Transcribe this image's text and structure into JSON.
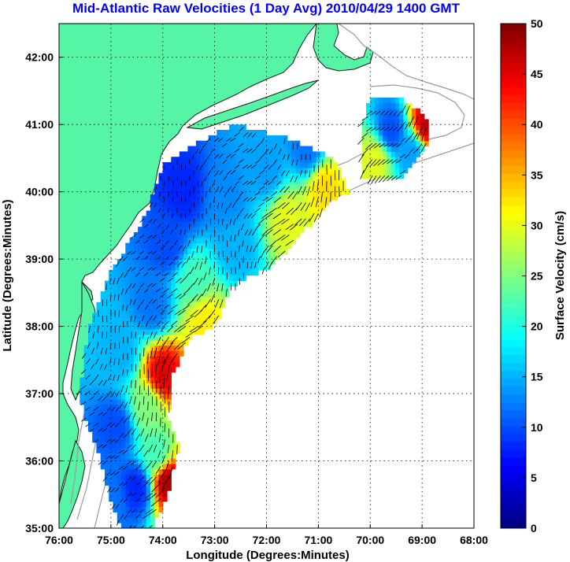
{
  "title": "Mid-Atlantic Raw Velocities (1 Day Avg) 2010/04/29 1400 GMT",
  "xlabel": "Longitude (Degrees:Minutes)",
  "ylabel": "Latitude (Degrees:Minutes)",
  "colorbar": {
    "label": "Surface Velocity (cm/s)",
    "min": 0,
    "max": 50,
    "ticks": [
      "0",
      "5",
      "10",
      "15",
      "20",
      "25",
      "30",
      "35",
      "40",
      "45",
      "50"
    ],
    "colormap": "jet"
  },
  "map": {
    "lon_range": [
      -76,
      -68
    ],
    "lat_range": [
      35,
      42.5
    ],
    "x_ticks": [
      "76:00",
      "75:00",
      "74:00",
      "73:00",
      "72:00",
      "71:00",
      "70:00",
      "69:00",
      "68:00"
    ],
    "y_ticks": [
      "35:00",
      "36:00",
      "37:00",
      "38:00",
      "39:00",
      "40:00",
      "41:00",
      "42:00"
    ],
    "grid": "dotted",
    "land_color": "#55f5a5",
    "bathymetry_color": "#9a9a9a"
  },
  "chart_data": {
    "type": "heatmap",
    "title": "Mid-Atlantic Raw Velocities (1 Day Avg) 2010/04/29 1400 GMT",
    "xlabel": "Longitude (Degrees:Minutes)",
    "ylabel": "Latitude (Degrees:Minutes)",
    "xlim": [
      -76,
      -68
    ],
    "ylim": [
      35,
      42.5
    ],
    "clim": [
      0,
      50
    ],
    "units": "cm/s",
    "velocity_regions": [
      {
        "lon": -73.6,
        "lat": 40.0,
        "speed": 8
      },
      {
        "lon": -72.8,
        "lat": 39.9,
        "speed": 13
      },
      {
        "lon": -72.0,
        "lat": 40.3,
        "speed": 14
      },
      {
        "lon": -71.2,
        "lat": 40.6,
        "speed": 12
      },
      {
        "lon": -70.9,
        "lat": 40.1,
        "speed": 33
      },
      {
        "lon": -71.6,
        "lat": 39.6,
        "speed": 30
      },
      {
        "lon": -72.6,
        "lat": 39.2,
        "speed": 15
      },
      {
        "lon": -73.9,
        "lat": 39.2,
        "speed": 10
      },
      {
        "lon": -73.4,
        "lat": 38.7,
        "speed": 22
      },
      {
        "lon": -73.2,
        "lat": 38.1,
        "speed": 32
      },
      {
        "lon": -74.2,
        "lat": 38.3,
        "speed": 12
      },
      {
        "lon": -74.8,
        "lat": 37.6,
        "speed": 15
      },
      {
        "lon": -74.0,
        "lat": 37.3,
        "speed": 45
      },
      {
        "lon": -74.3,
        "lat": 36.8,
        "speed": 25
      },
      {
        "lon": -74.9,
        "lat": 36.5,
        "speed": 10
      },
      {
        "lon": -74.1,
        "lat": 36.1,
        "speed": 22
      },
      {
        "lon": -73.9,
        "lat": 35.7,
        "speed": 48
      },
      {
        "lon": -74.5,
        "lat": 35.6,
        "speed": 8
      },
      {
        "lon": -75.0,
        "lat": 35.4,
        "speed": 12
      },
      {
        "lon": -69.6,
        "lat": 40.9,
        "speed": 10
      },
      {
        "lon": -69.2,
        "lat": 40.6,
        "speed": 14
      },
      {
        "lon": -69.9,
        "lat": 40.5,
        "speed": 30
      },
      {
        "lon": -68.9,
        "lat": 41.0,
        "speed": 47
      }
    ]
  }
}
